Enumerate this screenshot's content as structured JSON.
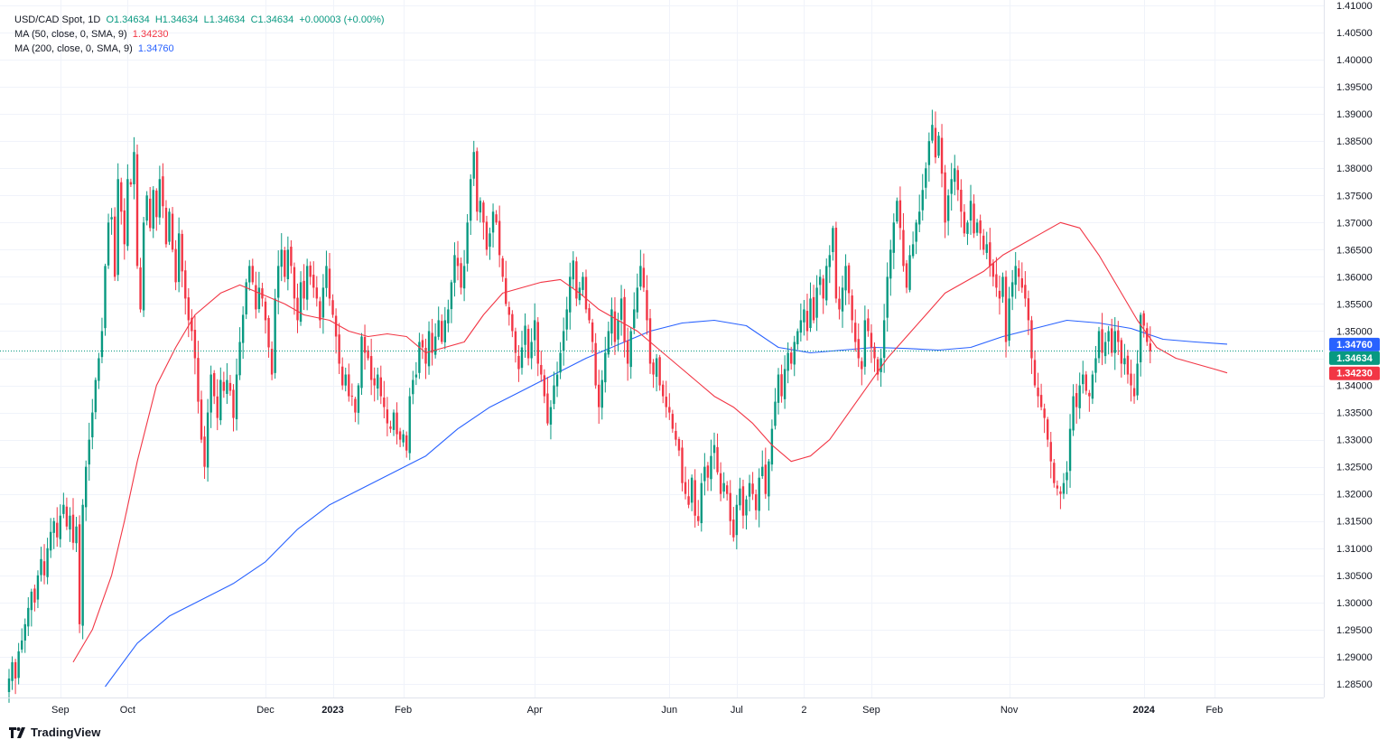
{
  "legend": {
    "symbol": "USD/CAD Spot, 1D",
    "open": "O1.34634",
    "high": "H1.34634",
    "low": "L1.34634",
    "close": "C1.34634",
    "change": "+0.00003 (+0.00%)",
    "ma50_label": "MA (50, close, 0, SMA, 9)",
    "ma50_value": "1.34230",
    "ma200_label": "MA (200, close, 0, SMA, 9)",
    "ma200_value": "1.34760"
  },
  "branding": {
    "name": "TradingView"
  },
  "colors": {
    "up": "#089981",
    "down": "#f23645",
    "ma50": "#f23645",
    "ma200": "#2962ff",
    "grid": "#f0f3fa",
    "axis_text": "#131722",
    "last_price_line": "#089981"
  },
  "chart_data": {
    "type": "candlestick",
    "title": "USD/CAD Spot, 1D",
    "ylim": [
      1.2825,
      1.411
    ],
    "y_ticks": [
      "1.41000",
      "1.40500",
      "1.40000",
      "1.39500",
      "1.39000",
      "1.38500",
      "1.38000",
      "1.37500",
      "1.37000",
      "1.36500",
      "1.36000",
      "1.35500",
      "1.35000",
      "1.34500",
      "1.34000",
      "1.33500",
      "1.33000",
      "1.32500",
      "1.32000",
      "1.31500",
      "1.31000",
      "1.30500",
      "1.30000",
      "1.29500",
      "1.29000",
      "1.28500"
    ],
    "x_ticks": [
      {
        "label": "Sep",
        "idx": 16,
        "bold": false
      },
      {
        "label": "Oct",
        "idx": 37,
        "bold": false
      },
      {
        "label": "Dec",
        "idx": 80,
        "bold": false
      },
      {
        "label": "2023",
        "idx": 101,
        "bold": true
      },
      {
        "label": "Feb",
        "idx": 123,
        "bold": false
      },
      {
        "label": "Apr",
        "idx": 164,
        "bold": false
      },
      {
        "label": "Jun",
        "idx": 206,
        "bold": false
      },
      {
        "label": "Jul",
        "idx": 227,
        "bold": false
      },
      {
        "label": "2",
        "idx": 248,
        "bold": false
      },
      {
        "label": "Sep",
        "idx": 269,
        "bold": false
      },
      {
        "label": "Nov",
        "idx": 312,
        "bold": false
      },
      {
        "label": "2024",
        "idx": 354,
        "bold": true
      },
      {
        "label": "Feb",
        "idx": 376,
        "bold": false
      }
    ],
    "closes": [
      1.286,
      1.289,
      1.286,
      1.291,
      1.293,
      1.296,
      1.299,
      1.302,
      1.3,
      1.305,
      1.308,
      1.305,
      1.31,
      1.313,
      1.315,
      1.312,
      1.316,
      1.318,
      1.314,
      1.316,
      1.311,
      1.314,
      1.296,
      1.318,
      1.325,
      1.33,
      1.335,
      1.341,
      1.345,
      1.35,
      1.362,
      1.37,
      1.371,
      1.36,
      1.378,
      1.372,
      1.366,
      1.378,
      1.377,
      1.383,
      1.362,
      1.354,
      1.37,
      1.375,
      1.369,
      1.376,
      1.371,
      1.378,
      1.373,
      1.366,
      1.372,
      1.365,
      1.359,
      1.368,
      1.361,
      1.356,
      1.352,
      1.35,
      1.345,
      1.337,
      1.33,
      1.325,
      1.335,
      1.342,
      1.338,
      1.334,
      1.341,
      1.339,
      1.341,
      1.339,
      1.334,
      1.342,
      1.348,
      1.353,
      1.359,
      1.362,
      1.359,
      1.354,
      1.358,
      1.356,
      1.352,
      1.347,
      1.342,
      1.356,
      1.362,
      1.365,
      1.36,
      1.365,
      1.362,
      1.356,
      1.352,
      1.359,
      1.356,
      1.362,
      1.36,
      1.358,
      1.356,
      1.352,
      1.358,
      1.362,
      1.356,
      1.353,
      1.349,
      1.344,
      1.34,
      1.342,
      1.338,
      1.338,
      1.335,
      1.34,
      1.349,
      1.346,
      1.345,
      1.341,
      1.34,
      1.342,
      1.338,
      1.336,
      1.333,
      1.332,
      1.335,
      1.331,
      1.33,
      1.331,
      1.328,
      1.338,
      1.341,
      1.342,
      1.348,
      1.347,
      1.344,
      1.35,
      1.346,
      1.349,
      1.352,
      1.348,
      1.352,
      1.354,
      1.359,
      1.364,
      1.362,
      1.358,
      1.362,
      1.37,
      1.378,
      1.383,
      1.372,
      1.374,
      1.37,
      1.365,
      1.368,
      1.372,
      1.37,
      1.364,
      1.36,
      1.355,
      1.353,
      1.35,
      1.346,
      1.343,
      1.347,
      1.351,
      1.345,
      1.348,
      1.352,
      1.344,
      1.342,
      1.338,
      1.333,
      1.336,
      1.34,
      1.342,
      1.346,
      1.35,
      1.354,
      1.36,
      1.363,
      1.356,
      1.358,
      1.36,
      1.354,
      1.352,
      1.348,
      1.34,
      1.336,
      1.341,
      1.346,
      1.35,
      1.354,
      1.348,
      1.352,
      1.356,
      1.348,
      1.344,
      1.35,
      1.354,
      1.358,
      1.362,
      1.358,
      1.352,
      1.344,
      1.342,
      1.345,
      1.34,
      1.338,
      1.336,
      1.335,
      1.332,
      1.33,
      1.328,
      1.322,
      1.32,
      1.318,
      1.323,
      1.316,
      1.315,
      1.322,
      1.325,
      1.323,
      1.327,
      1.329,
      1.324,
      1.32,
      1.322,
      1.32,
      1.315,
      1.312,
      1.318,
      1.321,
      1.316,
      1.319,
      1.322,
      1.32,
      1.317,
      1.323,
      1.325,
      1.32,
      1.326,
      1.332,
      1.337,
      1.342,
      1.338,
      1.343,
      1.346,
      1.344,
      1.348,
      1.35,
      1.352,
      1.354,
      1.35,
      1.356,
      1.352,
      1.358,
      1.36,
      1.356,
      1.362,
      1.364,
      1.369,
      1.356,
      1.354,
      1.358,
      1.362,
      1.357,
      1.352,
      1.348,
      1.345,
      1.343,
      1.352,
      1.35,
      1.347,
      1.345,
      1.342,
      1.345,
      1.352,
      1.36,
      1.365,
      1.37,
      1.374,
      1.369,
      1.362,
      1.358,
      1.364,
      1.366,
      1.37,
      1.372,
      1.376,
      1.38,
      1.385,
      1.388,
      1.382,
      1.386,
      1.379,
      1.37,
      1.375,
      1.378,
      1.38,
      1.376,
      1.372,
      1.368,
      1.37,
      1.374,
      1.368,
      1.37,
      1.368,
      1.365,
      1.366,
      1.362,
      1.36,
      1.358,
      1.356,
      1.36,
      1.348,
      1.356,
      1.359,
      1.362,
      1.36,
      1.358,
      1.356,
      1.352,
      1.345,
      1.34,
      1.338,
      1.336,
      1.334,
      1.33,
      1.326,
      1.322,
      1.321,
      1.32,
      1.322,
      1.324,
      1.332,
      1.338,
      1.336,
      1.34,
      1.342,
      1.339,
      1.338,
      1.342,
      1.345,
      1.35,
      1.346,
      1.348,
      1.35,
      1.346,
      1.35,
      1.348,
      1.344,
      1.345,
      1.342,
      1.34,
      1.338,
      1.344,
      1.353,
      1.351,
      1.348,
      1.3463
    ],
    "ma50": [
      {
        "idx": 20,
        "value": 1.289
      },
      {
        "idx": 26,
        "value": 1.295
      },
      {
        "idx": 32,
        "value": 1.305
      },
      {
        "idx": 36,
        "value": 1.315
      },
      {
        "idx": 40,
        "value": 1.326
      },
      {
        "idx": 46,
        "value": 1.34
      },
      {
        "idx": 52,
        "value": 1.347
      },
      {
        "idx": 58,
        "value": 1.353
      },
      {
        "idx": 66,
        "value": 1.357
      },
      {
        "idx": 72,
        "value": 1.3585
      },
      {
        "idx": 78,
        "value": 1.357
      },
      {
        "idx": 86,
        "value": 1.355
      },
      {
        "idx": 92,
        "value": 1.353
      },
      {
        "idx": 100,
        "value": 1.352
      },
      {
        "idx": 106,
        "value": 1.35
      },
      {
        "idx": 112,
        "value": 1.349
      },
      {
        "idx": 118,
        "value": 1.3495
      },
      {
        "idx": 124,
        "value": 1.349
      },
      {
        "idx": 130,
        "value": 1.346
      },
      {
        "idx": 136,
        "value": 1.347
      },
      {
        "idx": 142,
        "value": 1.348
      },
      {
        "idx": 148,
        "value": 1.353
      },
      {
        "idx": 154,
        "value": 1.357
      },
      {
        "idx": 160,
        "value": 1.358
      },
      {
        "idx": 166,
        "value": 1.359
      },
      {
        "idx": 172,
        "value": 1.3595
      },
      {
        "idx": 178,
        "value": 1.357
      },
      {
        "idx": 184,
        "value": 1.354
      },
      {
        "idx": 190,
        "value": 1.352
      },
      {
        "idx": 196,
        "value": 1.35
      },
      {
        "idx": 202,
        "value": 1.347
      },
      {
        "idx": 208,
        "value": 1.344
      },
      {
        "idx": 214,
        "value": 1.341
      },
      {
        "idx": 220,
        "value": 1.338
      },
      {
        "idx": 226,
        "value": 1.336
      },
      {
        "idx": 232,
        "value": 1.333
      },
      {
        "idx": 238,
        "value": 1.329
      },
      {
        "idx": 244,
        "value": 1.326
      },
      {
        "idx": 250,
        "value": 1.327
      },
      {
        "idx": 256,
        "value": 1.33
      },
      {
        "idx": 262,
        "value": 1.335
      },
      {
        "idx": 268,
        "value": 1.34
      },
      {
        "idx": 274,
        "value": 1.345
      },
      {
        "idx": 280,
        "value": 1.349
      },
      {
        "idx": 286,
        "value": 1.353
      },
      {
        "idx": 292,
        "value": 1.357
      },
      {
        "idx": 298,
        "value": 1.359
      },
      {
        "idx": 304,
        "value": 1.361
      },
      {
        "idx": 310,
        "value": 1.364
      },
      {
        "idx": 316,
        "value": 1.366
      },
      {
        "idx": 322,
        "value": 1.368
      },
      {
        "idx": 328,
        "value": 1.37
      },
      {
        "idx": 334,
        "value": 1.369
      },
      {
        "idx": 340,
        "value": 1.364
      },
      {
        "idx": 346,
        "value": 1.358
      },
      {
        "idx": 352,
        "value": 1.352
      },
      {
        "idx": 358,
        "value": 1.347
      },
      {
        "idx": 364,
        "value": 1.345
      },
      {
        "idx": 370,
        "value": 1.344
      },
      {
        "idx": 376,
        "value": 1.343
      },
      {
        "idx": 380,
        "value": 1.3423
      }
    ],
    "ma200": [
      {
        "idx": 30,
        "value": 1.2845
      },
      {
        "idx": 40,
        "value": 1.2925
      },
      {
        "idx": 50,
        "value": 1.2975
      },
      {
        "idx": 60,
        "value": 1.3005
      },
      {
        "idx": 70,
        "value": 1.3035
      },
      {
        "idx": 80,
        "value": 1.3075
      },
      {
        "idx": 90,
        "value": 1.3135
      },
      {
        "idx": 100,
        "value": 1.318
      },
      {
        "idx": 110,
        "value": 1.321
      },
      {
        "idx": 120,
        "value": 1.324
      },
      {
        "idx": 130,
        "value": 1.327
      },
      {
        "idx": 140,
        "value": 1.332
      },
      {
        "idx": 150,
        "value": 1.336
      },
      {
        "idx": 160,
        "value": 1.339
      },
      {
        "idx": 170,
        "value": 1.342
      },
      {
        "idx": 180,
        "value": 1.345
      },
      {
        "idx": 190,
        "value": 1.3475
      },
      {
        "idx": 200,
        "value": 1.35
      },
      {
        "idx": 210,
        "value": 1.3515
      },
      {
        "idx": 220,
        "value": 1.352
      },
      {
        "idx": 230,
        "value": 1.351
      },
      {
        "idx": 240,
        "value": 1.347
      },
      {
        "idx": 250,
        "value": 1.346
      },
      {
        "idx": 260,
        "value": 1.3465
      },
      {
        "idx": 270,
        "value": 1.347
      },
      {
        "idx": 280,
        "value": 1.3468
      },
      {
        "idx": 290,
        "value": 1.3465
      },
      {
        "idx": 300,
        "value": 1.347
      },
      {
        "idx": 310,
        "value": 1.349
      },
      {
        "idx": 320,
        "value": 1.3505
      },
      {
        "idx": 330,
        "value": 1.352
      },
      {
        "idx": 340,
        "value": 1.3515
      },
      {
        "idx": 350,
        "value": 1.3505
      },
      {
        "idx": 360,
        "value": 1.3485
      },
      {
        "idx": 370,
        "value": 1.348
      },
      {
        "idx": 380,
        "value": 1.3476
      }
    ],
    "last_price": 1.34634,
    "price_tags": [
      {
        "label": "1.34760",
        "value": 1.3476,
        "color": "#2962ff"
      },
      {
        "label": "1.34634",
        "value": 1.34634,
        "color": "#089981"
      },
      {
        "label": "1.34230",
        "value": 1.3423,
        "color": "#f23645"
      }
    ]
  }
}
